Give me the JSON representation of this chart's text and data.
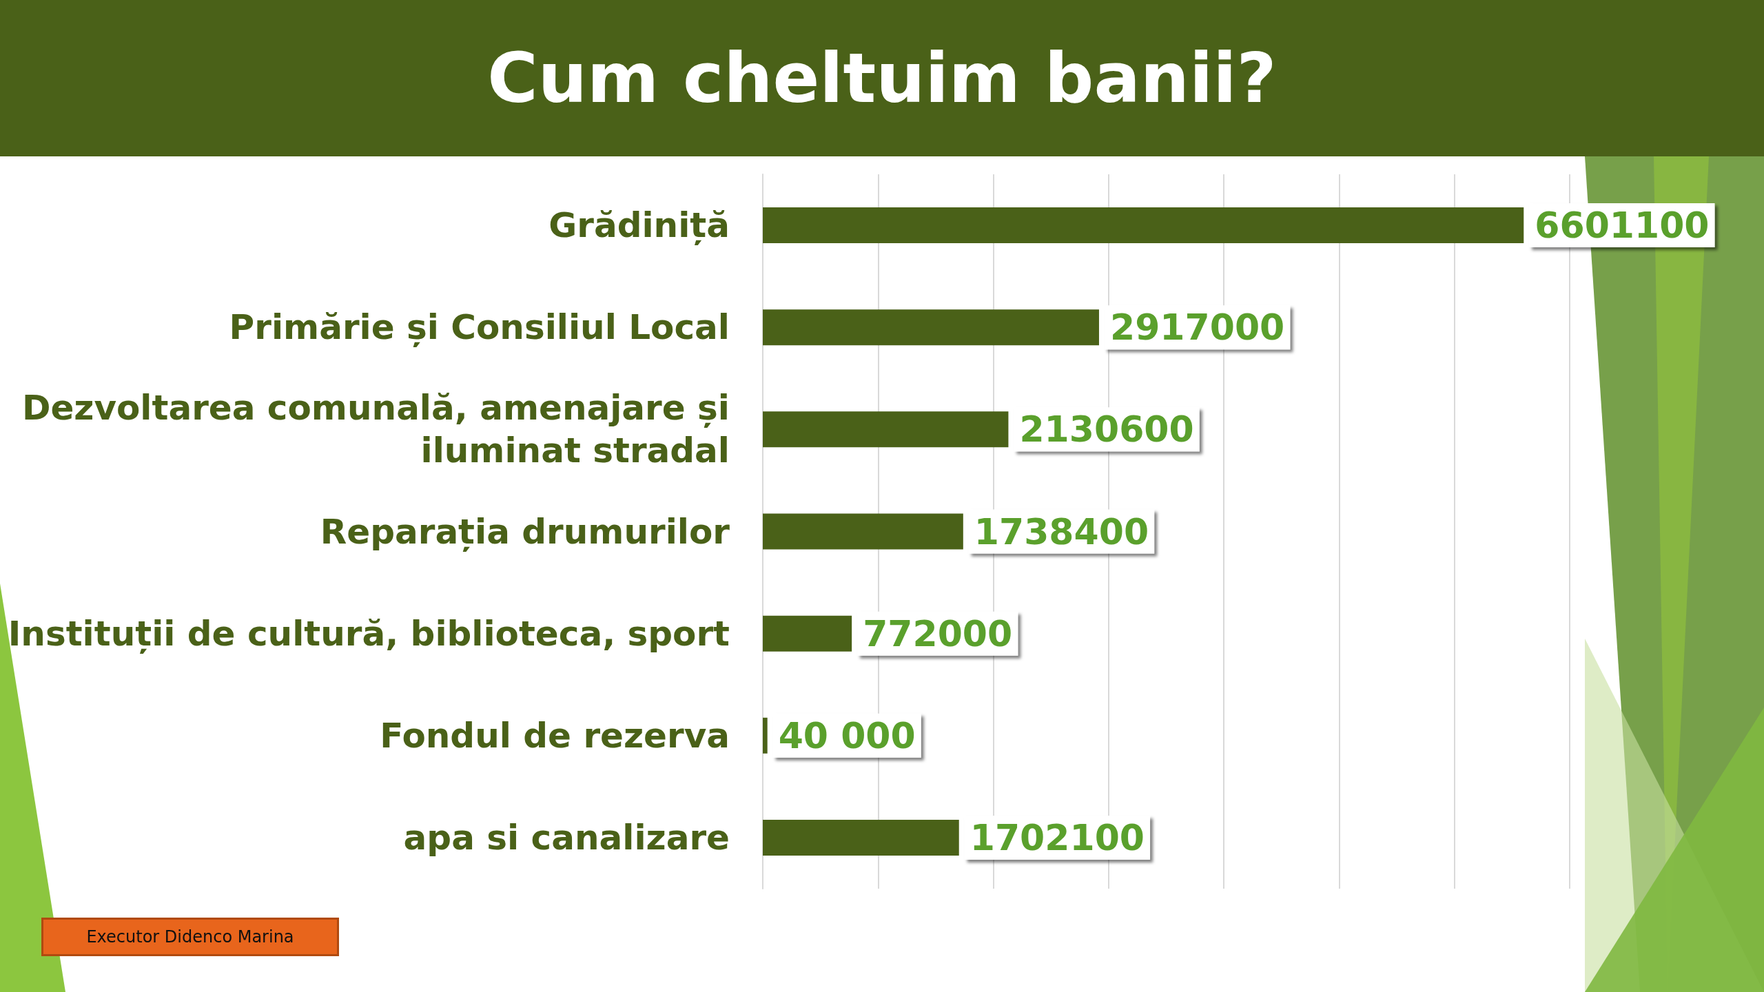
{
  "chart_data": {
    "type": "bar",
    "orientation": "horizontal",
    "title": "Cum cheltuim banii?",
    "categories": [
      "Grădiniță",
      "Primărie și Consiliul Local",
      "Dezvoltarea comunală, amenajare și\niluminat stradal",
      "Reparația drumurilor",
      "Instituții de cultură, biblioteca, sport",
      "Fondul de rezerva",
      "apa si canalizare"
    ],
    "values": [
      6601100,
      2917000,
      2130600,
      1738400,
      772000,
      40000,
      1702100
    ],
    "value_labels": [
      "6601100",
      "2917000",
      "2130600",
      "1738400",
      "772000",
      "40 000",
      "1702100"
    ],
    "color": "#4a6118",
    "xlim": [
      0,
      7000000
    ],
    "xticks": [
      {
        "value": 0,
        "label": null
      },
      {
        "value": 1000000,
        "label": null
      },
      {
        "value": 2000000,
        "label": null
      },
      {
        "value": 3000000,
        "label": null
      },
      {
        "value": 4000000,
        "label": null
      },
      {
        "value": 5000000,
        "label": null
      },
      {
        "value": 6000000,
        "label": null
      },
      {
        "value": 7000000,
        "label": null
      }
    ],
    "grid": "x",
    "tick_labels": "y",
    "annotations": [
      "Executor Didenco Marina"
    ]
  }
}
